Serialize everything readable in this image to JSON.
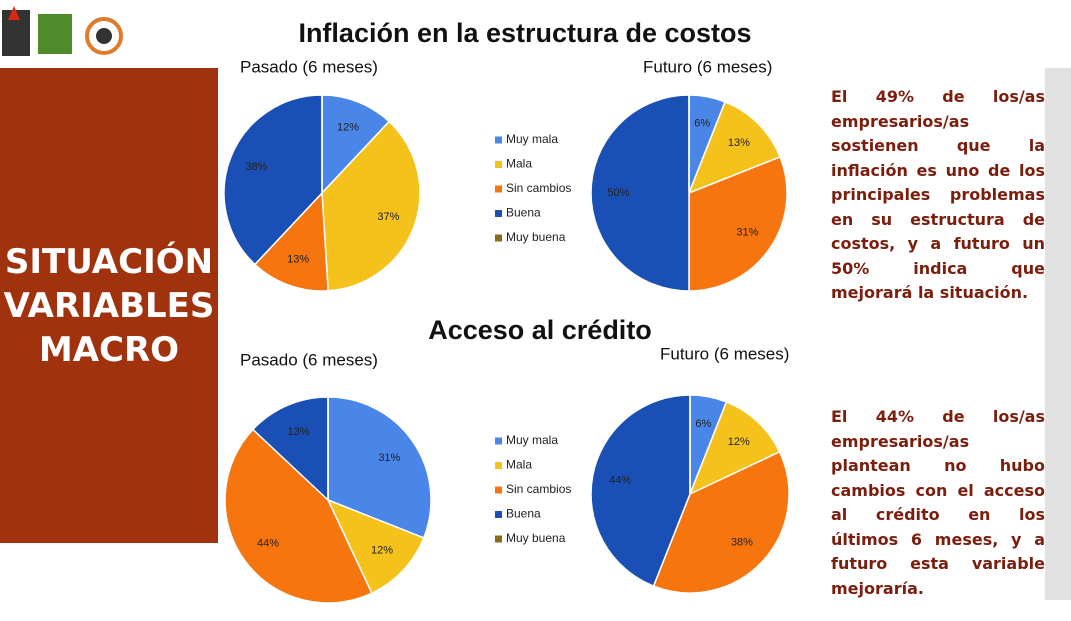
{
  "slide": {
    "side_title": "SITUACIÓN VARIABLES MACRO",
    "sections": [
      {
        "title": "Inflación en la estructura de costos",
        "note": "El 49% de los/as empresarios/as sostienen que la inflación es uno de los principales problemas en su estructura de costos, y a futuro un 50% indica que mejorará la situación."
      },
      {
        "title": "Acceso al crédito",
        "note": "El 44% de los/as empresarios/as plantean no hubo cambios con el acceso al crédito en los últimos 6 meses, y a futuro esta variable mejoraría."
      }
    ]
  },
  "chart_data": [
    {
      "type": "pie",
      "title": "Pasado (6 meses)",
      "categories": [
        "Muy mala",
        "Mala",
        "Sin cambios",
        "Buena",
        "Muy buena"
      ],
      "values": [
        12,
        37,
        13,
        38,
        0
      ],
      "value_labels": [
        "12%",
        "37%",
        "13%",
        "38%",
        null
      ],
      "colors": [
        "#4a86e8",
        "#f5c21b",
        "#f7750f",
        "#1a4fb5",
        "#8a6d1a"
      ],
      "legend": "right"
    },
    {
      "type": "pie",
      "title": "Futuro (6 meses)",
      "values": [
        6,
        13,
        31,
        50,
        0
      ],
      "value_labels": [
        "6%",
        "13%",
        "31%",
        "50%",
        null
      ],
      "colors": [
        "#4a86e8",
        "#f5c21b",
        "#f7750f",
        "#1a4fb5",
        "#8a6d1a"
      ]
    },
    {
      "type": "pie",
      "title": "Pasado (6 meses)",
      "categories": [
        "Muy mala",
        "Mala",
        "Sin cambios",
        "Buena",
        "Muy buena"
      ],
      "values": [
        31,
        12,
        44,
        13,
        0
      ],
      "value_labels": [
        "31%",
        "12%",
        "44%",
        "13%",
        null
      ],
      "colors": [
        "#4a86e8",
        "#f5c21b",
        "#f7750f",
        "#1a4fb5",
        "#8a6d1a"
      ],
      "legend": "right"
    },
    {
      "type": "pie",
      "title": "Futuro (6 meses)",
      "values": [
        6,
        12,
        38,
        44,
        0
      ],
      "value_labels": [
        "6%",
        "12%",
        "38%",
        "44%",
        null
      ],
      "colors": [
        "#4a86e8",
        "#f5c21b",
        "#f7750f",
        "#1a4fb5",
        "#8a6d1a"
      ]
    }
  ]
}
